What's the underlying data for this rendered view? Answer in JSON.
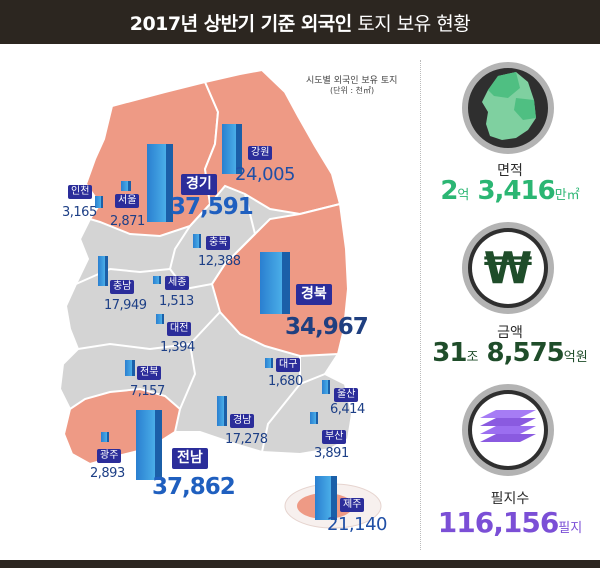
{
  "header": {
    "title_bold": "2017년 상반기 기준 외국인",
    "title_light": "토지 보유 현황"
  },
  "legend": {
    "title": "시도별 외국인 보유 토지",
    "unit": "(단위 : 천㎡)"
  },
  "regions": {
    "incheon": {
      "name": "인천",
      "value": "3,165"
    },
    "seoul": {
      "name": "서울",
      "value": "2,871"
    },
    "gyeonggi": {
      "name": "경기",
      "value": "37,591"
    },
    "gangwon": {
      "name": "강원",
      "value": "24,005"
    },
    "chungbuk": {
      "name": "충북",
      "value": "12,388"
    },
    "chungnam": {
      "name": "충남",
      "value": "17,949"
    },
    "sejong": {
      "name": "세종",
      "value": "1,513"
    },
    "daejeon": {
      "name": "대전",
      "value": "1,394"
    },
    "gyeongbuk": {
      "name": "경북",
      "value": "34,967"
    },
    "jeonbuk": {
      "name": "전북",
      "value": "7,157"
    },
    "daegu": {
      "name": "대구",
      "value": "1,680"
    },
    "ulsan": {
      "name": "울산",
      "value": "6,414"
    },
    "gyeongnam": {
      "name": "경남",
      "value": "17,278"
    },
    "busan": {
      "name": "부산",
      "value": "3,891"
    },
    "gwangju": {
      "name": "광주",
      "value": "2,893"
    },
    "jeonnam": {
      "name": "전남",
      "value": "37,862"
    },
    "jeju": {
      "name": "제주",
      "value": "21,140"
    }
  },
  "stats": {
    "area": {
      "label": "면적",
      "num1": "2",
      "unit1": "억",
      "num2": "3,416",
      "unit2": "만㎡",
      "color": "#2bb673",
      "icon": "korea-map-icon"
    },
    "amount": {
      "label": "금액",
      "num1": "31",
      "unit1": "조",
      "num2": "8,575",
      "unit2": "억원",
      "color": "#1f4d2a",
      "icon": "won-icon"
    },
    "parcels": {
      "label": "필지수",
      "num1": "116,156",
      "unit1": "필지",
      "color": "#7b4fd6",
      "icon": "layers-icon"
    }
  },
  "colors": {
    "header": "#2c2620",
    "salmon": "#ee9a85",
    "grey": "#d4d4d4",
    "bar": "#3a9be0",
    "badge": "#2b2d9a"
  }
}
